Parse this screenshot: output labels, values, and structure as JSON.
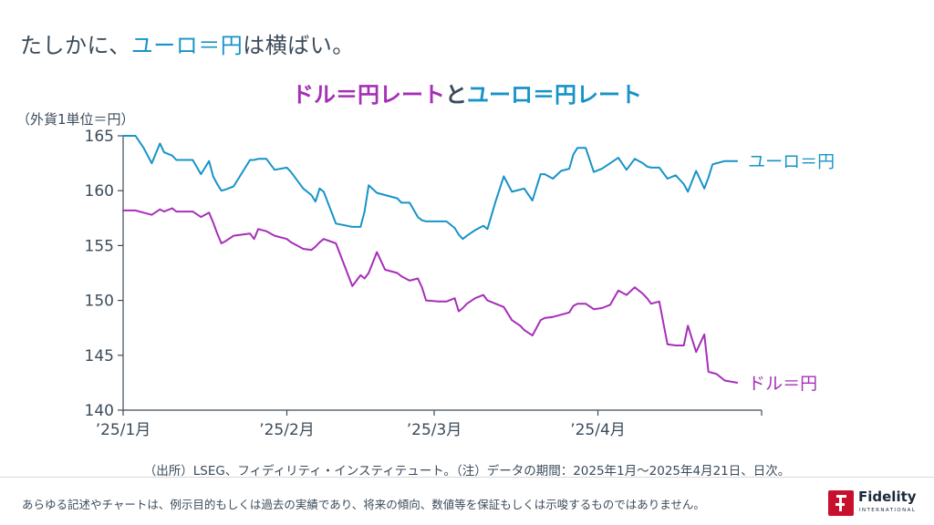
{
  "headline": {
    "prefix": "たしかに、",
    "highlight": "ユーロ＝円",
    "suffix": "は横ばい。"
  },
  "colors": {
    "usd": "#a62fb8",
    "eur": "#1793c8",
    "text": "#3b4b5a",
    "axis": "#3b4b5a"
  },
  "chart_data": {
    "type": "line",
    "title_parts": [
      "ドル＝円レート",
      "と",
      "ユーロ＝円レート"
    ],
    "ylabel": "（外貨1単位＝円）",
    "ylim": [
      140,
      165
    ],
    "yticks": [
      140,
      145,
      150,
      155,
      160,
      165
    ],
    "xlim": [
      0,
      156
    ],
    "xticks": [
      {
        "label": "’25/1月",
        "pos": 0
      },
      {
        "label": "’25/2月",
        "pos": 40
      },
      {
        "label": "’25/3月",
        "pos": 76
      },
      {
        "label": "’25/4月",
        "pos": 116
      }
    ],
    "series": [
      {
        "name": "ユーロ＝円",
        "color": "#1793c8",
        "x": [
          0,
          3,
          5,
          7,
          9,
          10,
          12,
          13,
          15,
          17,
          19,
          21,
          22,
          23,
          24,
          25,
          27,
          31,
          32,
          33,
          35,
          37,
          40,
          41,
          44,
          46,
          47,
          48,
          49,
          52,
          56,
          58,
          59,
          60,
          62,
          64,
          67,
          68,
          70,
          72,
          73,
          74,
          77,
          79,
          81,
          82,
          83,
          84,
          86,
          88,
          89,
          91,
          93,
          95,
          97,
          98,
          100,
          102,
          103,
          105,
          107,
          109,
          110,
          111,
          113,
          115,
          117,
          119,
          121,
          123,
          125,
          127,
          128,
          129,
          131,
          133,
          135,
          137,
          138,
          140,
          142,
          143,
          144,
          145,
          147,
          150
        ],
        "y": [
          165,
          165,
          163.9,
          162.5,
          164.3,
          163.5,
          163.2,
          162.8,
          162.8,
          162.8,
          161.5,
          162.7,
          161.3,
          160.6,
          160.0,
          160.1,
          160.4,
          162.8,
          162.8,
          162.9,
          162.9,
          161.9,
          162.1,
          161.7,
          160.2,
          159.6,
          159.0,
          160.2,
          159.9,
          157.0,
          156.7,
          156.7,
          158.1,
          160.5,
          159.8,
          159.6,
          159.3,
          158.9,
          158.9,
          157.6,
          157.3,
          157.2,
          157.2,
          157.2,
          156.6,
          156.0,
          155.6,
          155.9,
          156.4,
          156.8,
          156.5,
          159.0,
          161.3,
          159.9,
          160.1,
          160.2,
          159.1,
          161.5,
          161.5,
          161.1,
          161.8,
          162.0,
          163.3,
          163.9,
          163.9,
          161.7,
          162.0,
          162.5,
          163.0,
          161.9,
          162.9,
          162.5,
          162.2,
          162.1,
          162.1,
          161.1,
          161.4,
          160.6,
          159.9,
          161.8,
          160.2,
          161.2,
          162.4,
          162.5,
          162.7,
          162.7
        ],
        "end_label": "ユーロ＝円"
      },
      {
        "name": "ドル＝円",
        "color": "#a62fb8",
        "x": [
          0,
          3,
          5,
          7,
          9,
          10,
          12,
          13,
          15,
          17,
          19,
          21,
          22,
          23,
          24,
          25,
          27,
          31,
          32,
          33,
          35,
          37,
          40,
          41,
          44,
          46,
          47,
          48,
          49,
          52,
          56,
          58,
          59,
          60,
          62,
          64,
          67,
          68,
          70,
          72,
          73,
          74,
          77,
          79,
          81,
          82,
          83,
          84,
          86,
          88,
          89,
          91,
          93,
          95,
          97,
          98,
          100,
          102,
          103,
          105,
          107,
          109,
          110,
          111,
          113,
          115,
          117,
          119,
          121,
          123,
          125,
          127,
          128,
          129,
          131,
          133,
          135,
          137,
          138,
          140,
          142,
          143,
          144,
          145,
          147,
          150
        ],
        "y": [
          158.2,
          158.2,
          158.0,
          157.8,
          158.3,
          158.1,
          158.4,
          158.1,
          158.1,
          158.1,
          157.6,
          158.0,
          157.1,
          156.1,
          155.2,
          155.4,
          155.9,
          156.1,
          155.6,
          156.5,
          156.3,
          155.9,
          155.6,
          155.3,
          154.7,
          154.6,
          154.9,
          155.3,
          155.6,
          155.2,
          151.3,
          152.3,
          152.0,
          152.5,
          154.4,
          152.8,
          152.5,
          152.2,
          151.8,
          152.0,
          151.2,
          150.0,
          149.9,
          149.9,
          150.2,
          149.0,
          149.3,
          149.7,
          150.2,
          150.5,
          150.0,
          149.7,
          149.4,
          148.2,
          147.7,
          147.3,
          146.8,
          148.2,
          148.4,
          148.5,
          148.7,
          148.9,
          149.5,
          149.7,
          149.7,
          149.2,
          149.3,
          149.6,
          150.9,
          150.5,
          151.2,
          150.6,
          150.2,
          149.7,
          149.9,
          146.0,
          145.9,
          145.9,
          147.7,
          145.3,
          146.9,
          143.5,
          143.4,
          143.3,
          142.7,
          142.5
        ],
        "end_label": "ドル＝円"
      }
    ]
  },
  "source_note": "（出所）LSEG、フィディリティ・インスティテュート。（注）データの期間：2025年1月～2025年4月21日、日次。",
  "footer": {
    "disclaimer": "あらゆる記述やチャートは、例示目的もしくは過去の実績であり、将来の傾向、数値等を保証もしくは示唆するものではありません。",
    "logo_name": "Fidelity",
    "logo_sub": "INTERNATIONAL"
  }
}
